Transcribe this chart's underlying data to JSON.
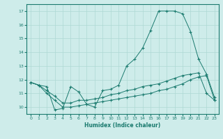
{
  "xlabel": "Humidex (Indice chaleur)",
  "background_color": "#ceecea",
  "grid_color": "#aed8d4",
  "line_color": "#1a7a6e",
  "xlim": [
    -0.5,
    23.5
  ],
  "ylim": [
    9.5,
    17.5
  ],
  "yticks": [
    10,
    11,
    12,
    13,
    14,
    15,
    16,
    17
  ],
  "xticks": [
    0,
    1,
    2,
    3,
    4,
    5,
    6,
    7,
    8,
    9,
    10,
    11,
    12,
    13,
    14,
    15,
    16,
    17,
    18,
    19,
    20,
    21,
    22,
    23
  ],
  "line1_x": [
    0,
    1,
    2,
    3,
    4,
    5,
    6,
    7,
    8,
    9,
    10,
    11,
    12,
    13,
    14,
    15,
    16,
    17,
    18,
    19,
    20,
    21,
    22,
    23
  ],
  "line1_y": [
    11.8,
    11.6,
    11.5,
    9.8,
    9.9,
    11.5,
    11.1,
    10.2,
    10.0,
    11.2,
    11.3,
    11.6,
    13.0,
    13.5,
    14.3,
    15.6,
    17.0,
    17.0,
    17.0,
    16.8,
    15.5,
    13.5,
    12.4,
    10.7
  ],
  "line2_x": [
    0,
    1,
    2,
    3,
    4,
    5,
    6,
    7,
    8,
    9,
    10,
    11,
    12,
    13,
    14,
    15,
    16,
    17,
    18,
    19,
    20,
    21,
    22,
    23
  ],
  "line2_y": [
    11.8,
    11.6,
    11.0,
    10.5,
    10.0,
    10.0,
    10.1,
    10.2,
    10.3,
    10.4,
    10.5,
    10.6,
    10.7,
    10.8,
    10.9,
    11.0,
    11.2,
    11.3,
    11.5,
    11.7,
    12.0,
    12.2,
    12.3,
    10.5
  ],
  "line3_x": [
    0,
    1,
    2,
    3,
    4,
    5,
    6,
    7,
    8,
    9,
    10,
    11,
    12,
    13,
    14,
    15,
    16,
    17,
    18,
    19,
    20,
    21,
    22,
    23
  ],
  "line3_y": [
    11.8,
    11.6,
    11.2,
    10.8,
    10.3,
    10.3,
    10.5,
    10.5,
    10.6,
    10.7,
    10.9,
    11.0,
    11.2,
    11.3,
    11.5,
    11.6,
    11.7,
    11.9,
    12.1,
    12.3,
    12.4,
    12.5,
    11.0,
    10.5
  ]
}
